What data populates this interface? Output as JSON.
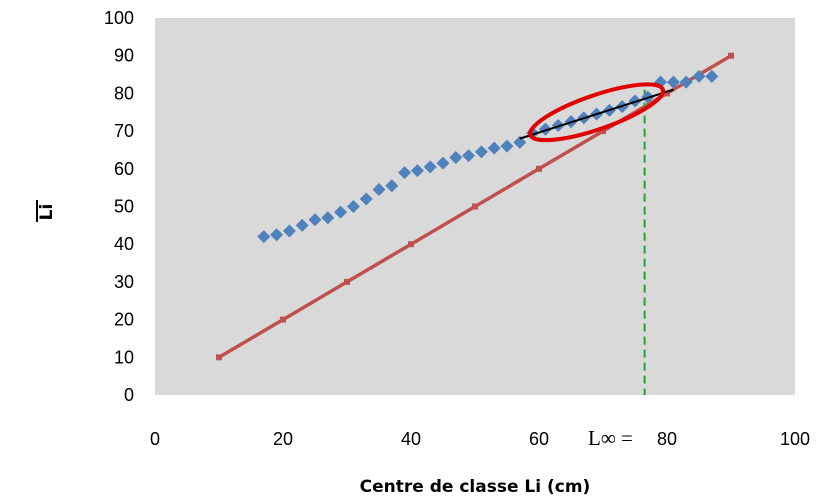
{
  "chart_data": {
    "type": "scatter",
    "xlabel": "Centre de classe Li (cm)",
    "ylabel": "Li",
    "xlim": [
      0,
      100
    ],
    "ylim": [
      0,
      100
    ],
    "x_ticks": [
      "0",
      "20",
      "40",
      "60",
      "80",
      "100"
    ],
    "y_ticks": [
      "0",
      "10",
      "20",
      "30",
      "40",
      "50",
      "60",
      "70",
      "80",
      "90",
      "100"
    ],
    "annotation": {
      "label": "L∞ =",
      "x": 76.5
    },
    "grid": false,
    "legend": "none",
    "series": [
      {
        "type": "scatter",
        "color": "#4f81bd",
        "marker": "diamond",
        "points": [
          [
            17,
            42
          ],
          [
            19,
            42.5
          ],
          [
            21,
            43.5
          ],
          [
            23,
            45
          ],
          [
            25,
            46.5
          ],
          [
            27,
            47
          ],
          [
            29,
            48.5
          ],
          [
            31,
            50
          ],
          [
            33,
            52
          ],
          [
            35,
            54.5
          ],
          [
            37,
            55.5
          ],
          [
            39,
            59
          ],
          [
            41,
            59.5
          ],
          [
            43,
            60.5
          ],
          [
            45,
            61.5
          ],
          [
            47,
            63
          ],
          [
            49,
            63.5
          ],
          [
            51,
            64.5
          ],
          [
            53,
            65.5
          ],
          [
            55,
            66
          ],
          [
            57,
            67
          ],
          [
            59,
            69.5
          ],
          [
            61,
            70.5
          ],
          [
            63,
            71.5
          ],
          [
            65,
            72.5
          ],
          [
            67,
            73.5
          ],
          [
            69,
            74.5
          ],
          [
            71,
            75.5
          ],
          [
            73,
            76.5
          ],
          [
            75,
            78
          ],
          [
            77,
            79
          ],
          [
            79,
            83
          ],
          [
            81,
            83
          ],
          [
            83,
            83
          ],
          [
            85,
            84.5
          ],
          [
            87,
            84.5
          ]
        ]
      },
      {
        "type": "line",
        "color": "#c0504d",
        "marker": "square",
        "points": [
          [
            10,
            10
          ],
          [
            20,
            20
          ],
          [
            30,
            30
          ],
          [
            40,
            40
          ],
          [
            50,
            50
          ],
          [
            60,
            60
          ],
          [
            70,
            70
          ],
          [
            80,
            80
          ],
          [
            90,
            90
          ]
        ]
      },
      {
        "type": "trendline",
        "color": "#000000",
        "points": [
          [
            57,
            68
          ],
          [
            81,
            81
          ]
        ]
      }
    ],
    "highlight_ellipse": {
      "color": "#e00000",
      "cx": 69,
      "cy": 75
    },
    "vline": {
      "x": 76.5,
      "y_top": 81,
      "color": "#21a32f",
      "style": "dashed"
    }
  }
}
